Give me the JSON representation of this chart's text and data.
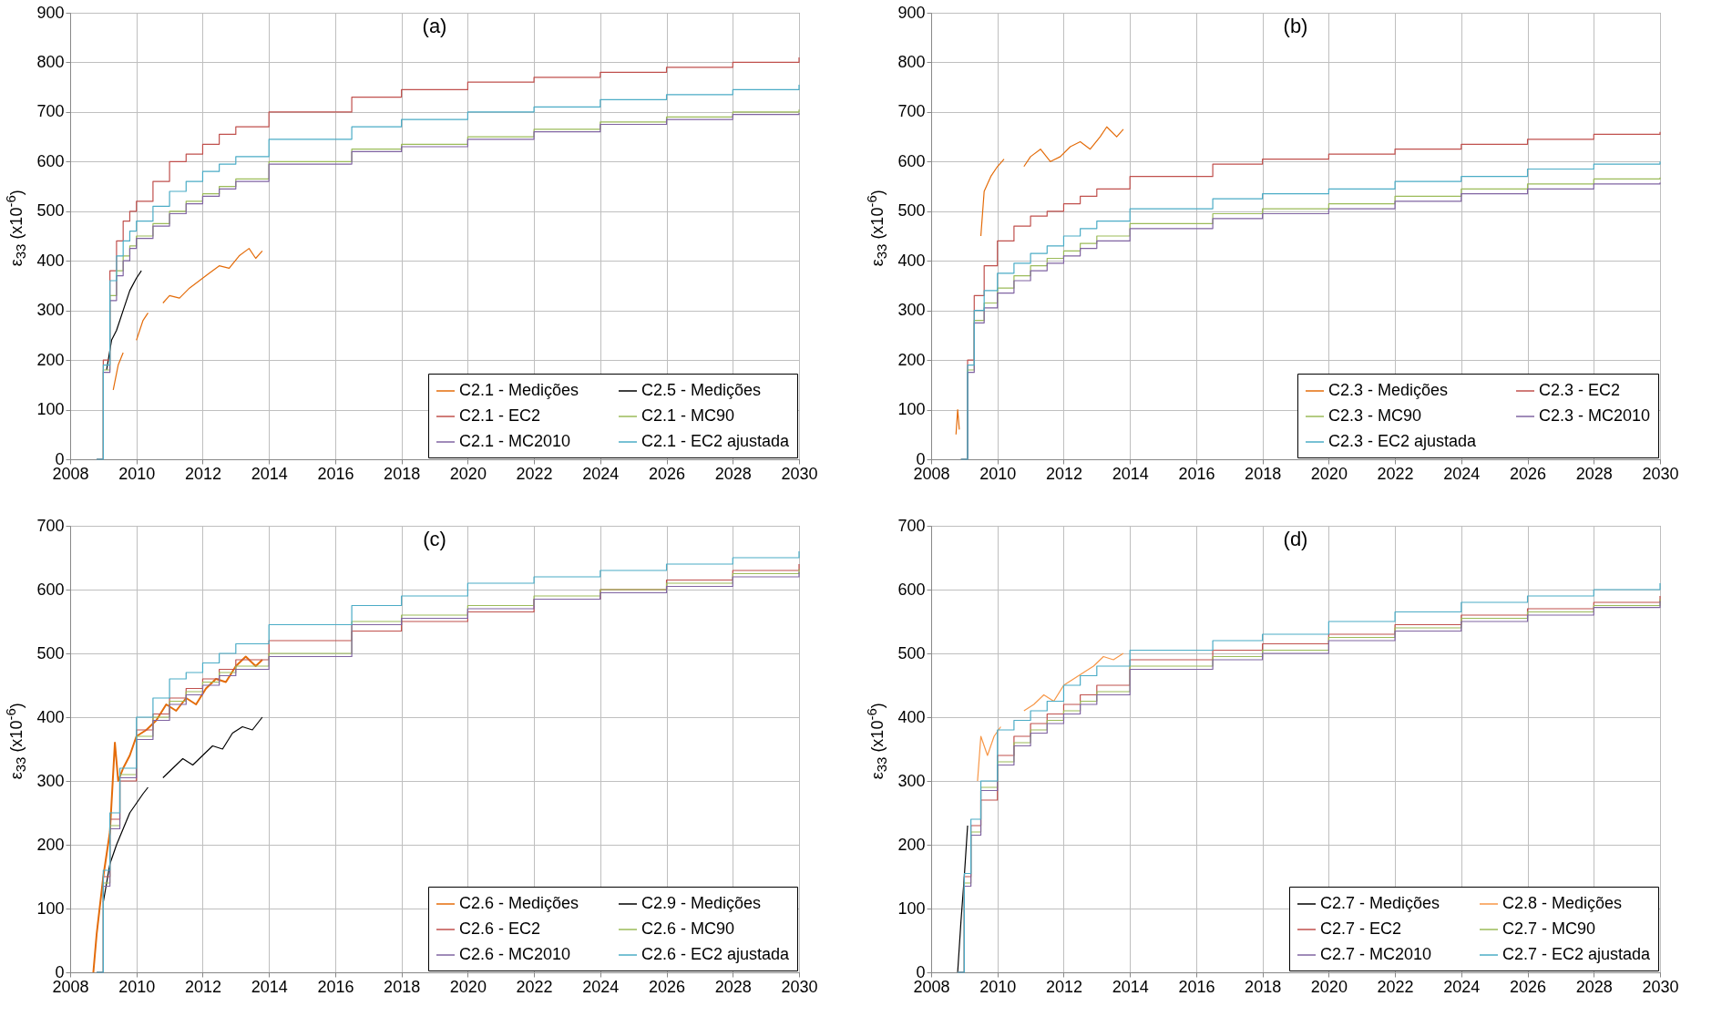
{
  "chart_data": [
    {
      "type": "line",
      "title": "(a)",
      "ylabel": "ε$_{33}$ (x10$^{-6}$)",
      "xlim": [
        2008,
        2030
      ],
      "xticks": [
        2008,
        2010,
        2012,
        2014,
        2016,
        2018,
        2020,
        2022,
        2024,
        2026,
        2028,
        2030
      ],
      "ylim": [
        0,
        900
      ],
      "yticks": [
        0,
        100,
        200,
        300,
        400,
        500,
        600,
        700,
        800,
        900
      ],
      "grid": true,
      "legend": "bottom right",
      "series": [
        {
          "name": "C2.1 - Medições",
          "color": "#e46c0a",
          "x": [
            2009.3,
            2009.45,
            2009.6,
            2009.8,
            2010.0,
            2010.2,
            2010.35,
            2010.5,
            2010.8,
            2011.0,
            2011.3,
            2011.6,
            2011.9,
            2012.2,
            2012.5,
            2012.8,
            2013.1,
            2013.4,
            2013.6,
            2013.8
          ],
          "values": [
            140,
            190,
            215,
            null,
            240,
            280,
            295,
            null,
            315,
            330,
            325,
            345,
            360,
            375,
            390,
            385,
            410,
            425,
            405,
            420
          ]
        },
        {
          "name": "C2.5 - Medições",
          "color": "#000000",
          "x": [
            2009.1,
            2009.25,
            2009.4,
            2009.6,
            2009.8,
            2010.0,
            2010.15
          ],
          "values": [
            180,
            240,
            260,
            300,
            340,
            365,
            380
          ]
        },
        {
          "name": "C2.1 - EC2",
          "type": "step",
          "color": "#c0504d",
          "x": [
            2008.8,
            2009.0,
            2009.2,
            2009.4,
            2009.6,
            2009.8,
            2010.0,
            2010.5,
            2011.0,
            2011.5,
            2012.0,
            2012.5,
            2013.0,
            2014.0,
            2016.5,
            2018.0,
            2020.0,
            2022.0,
            2024.0,
            2026.0,
            2028.0,
            2030.0
          ],
          "values": [
            0,
            200,
            380,
            440,
            480,
            500,
            520,
            560,
            600,
            615,
            635,
            655,
            670,
            700,
            730,
            745,
            760,
            770,
            780,
            790,
            800,
            810
          ]
        },
        {
          "name": "C2.1 - MC90",
          "type": "step",
          "color": "#9bbb59",
          "x": [
            2008.8,
            2009.0,
            2009.2,
            2009.4,
            2009.6,
            2009.8,
            2010.0,
            2010.5,
            2011.0,
            2011.5,
            2012.0,
            2012.5,
            2013.0,
            2014.0,
            2016.5,
            2018.0,
            2020.0,
            2022.0,
            2024.0,
            2026.0,
            2028.0,
            2030.0
          ],
          "values": [
            0,
            180,
            330,
            380,
            410,
            430,
            450,
            475,
            500,
            520,
            535,
            550,
            565,
            600,
            625,
            635,
            650,
            665,
            680,
            690,
            700,
            705
          ]
        },
        {
          "name": "C2.1 - MC2010",
          "type": "step",
          "color": "#8064a2",
          "x": [
            2008.8,
            2009.0,
            2009.2,
            2009.4,
            2009.6,
            2009.8,
            2010.0,
            2010.5,
            2011.0,
            2011.5,
            2012.0,
            2012.5,
            2013.0,
            2014.0,
            2016.5,
            2018.0,
            2020.0,
            2022.0,
            2024.0,
            2026.0,
            2028.0,
            2030.0
          ],
          "values": [
            0,
            175,
            320,
            370,
            400,
            425,
            445,
            470,
            495,
            515,
            530,
            545,
            560,
            595,
            620,
            630,
            645,
            660,
            675,
            685,
            695,
            698
          ]
        },
        {
          "name": "C2.1 - EC2 ajustada",
          "type": "step",
          "color": "#4bacc6",
          "x": [
            2008.8,
            2009.0,
            2009.2,
            2009.4,
            2009.6,
            2009.8,
            2010.0,
            2010.5,
            2011.0,
            2011.5,
            2012.0,
            2012.5,
            2013.0,
            2014.0,
            2016.5,
            2018.0,
            2020.0,
            2022.0,
            2024.0,
            2026.0,
            2028.0,
            2030.0
          ],
          "values": [
            0,
            190,
            360,
            410,
            440,
            460,
            480,
            510,
            540,
            560,
            580,
            595,
            610,
            645,
            670,
            685,
            700,
            710,
            725,
            735,
            745,
            755
          ]
        }
      ]
    },
    {
      "type": "line",
      "title": "(b)",
      "ylabel": "ε$_{33}$ (x10$^{-6}$)",
      "xlim": [
        2008,
        2030
      ],
      "xticks": [
        2008,
        2010,
        2012,
        2014,
        2016,
        2018,
        2020,
        2022,
        2024,
        2026,
        2028,
        2030
      ],
      "ylim": [
        0,
        900
      ],
      "yticks": [
        0,
        100,
        200,
        300,
        400,
        500,
        600,
        700,
        800,
        900
      ],
      "grid": true,
      "legend": "bottom right",
      "series": [
        {
          "name": "C2.3 - Medições",
          "color": "#e46c0a",
          "x": [
            2008.75,
            2008.8,
            2008.85,
            2009.4,
            2009.5,
            2009.6,
            2009.8,
            2010.0,
            2010.2,
            2010.5,
            2010.8,
            2011.0,
            2011.3,
            2011.6,
            2011.9,
            2012.2,
            2012.5,
            2012.8,
            2013.1,
            2013.3,
            2013.6,
            2013.8
          ],
          "values": [
            50,
            100,
            60,
            null,
            450,
            540,
            570,
            590,
            605,
            null,
            590,
            610,
            625,
            600,
            610,
            630,
            640,
            625,
            650,
            670,
            650,
            665
          ]
        },
        {
          "name": "C2.3 - EC2",
          "type": "step",
          "color": "#c0504d",
          "x": [
            2008.9,
            2009.1,
            2009.3,
            2009.6,
            2010.0,
            2010.5,
            2011.0,
            2011.5,
            2012.0,
            2012.5,
            2013.0,
            2014.0,
            2016.5,
            2018.0,
            2020.0,
            2022.0,
            2024.0,
            2026.0,
            2028.0,
            2030.0
          ],
          "values": [
            0,
            200,
            330,
            390,
            440,
            470,
            490,
            500,
            515,
            530,
            545,
            570,
            595,
            605,
            615,
            625,
            635,
            645,
            655,
            660
          ]
        },
        {
          "name": "C2.3 - MC90",
          "type": "step",
          "color": "#9bbb59",
          "x": [
            2008.9,
            2009.1,
            2009.3,
            2009.6,
            2010.0,
            2010.5,
            2011.0,
            2011.5,
            2012.0,
            2012.5,
            2013.0,
            2014.0,
            2016.5,
            2018.0,
            2020.0,
            2022.0,
            2024.0,
            2026.0,
            2028.0,
            2030.0
          ],
          "values": [
            0,
            180,
            280,
            315,
            345,
            370,
            390,
            405,
            420,
            435,
            450,
            475,
            495,
            505,
            515,
            530,
            545,
            555,
            565,
            568
          ]
        },
        {
          "name": "C2.3 - MC2010",
          "type": "step",
          "color": "#8064a2",
          "x": [
            2008.9,
            2009.1,
            2009.3,
            2009.6,
            2010.0,
            2010.5,
            2011.0,
            2011.5,
            2012.0,
            2012.5,
            2013.0,
            2014.0,
            2016.5,
            2018.0,
            2020.0,
            2022.0,
            2024.0,
            2026.0,
            2028.0,
            2030.0
          ],
          "values": [
            0,
            175,
            275,
            305,
            335,
            360,
            380,
            395,
            410,
            425,
            440,
            465,
            485,
            495,
            505,
            520,
            535,
            545,
            555,
            558
          ]
        },
        {
          "name": "C2.3 - EC2 ajustada",
          "type": "step",
          "color": "#4bacc6",
          "x": [
            2008.9,
            2009.1,
            2009.3,
            2009.6,
            2010.0,
            2010.5,
            2011.0,
            2011.5,
            2012.0,
            2012.5,
            2013.0,
            2014.0,
            2016.5,
            2018.0,
            2020.0,
            2022.0,
            2024.0,
            2026.0,
            2028.0,
            2030.0
          ],
          "values": [
            0,
            190,
            300,
            340,
            375,
            395,
            415,
            430,
            450,
            465,
            480,
            505,
            525,
            535,
            545,
            560,
            570,
            585,
            595,
            600
          ]
        }
      ]
    },
    {
      "type": "line",
      "title": "(c)",
      "ylabel": "ε$_{33}$ (x10$^{-6}$)",
      "xlim": [
        2008,
        2030
      ],
      "xticks": [
        2008,
        2010,
        2012,
        2014,
        2016,
        2018,
        2020,
        2022,
        2024,
        2026,
        2028,
        2030
      ],
      "ylim": [
        0,
        700
      ],
      "yticks": [
        0,
        100,
        200,
        300,
        400,
        500,
        600,
        700
      ],
      "grid": true,
      "legend": "bottom right",
      "series": [
        {
          "name": "C2.6 - Medições",
          "color": "#e46c0a",
          "x": [
            2008.7,
            2008.8,
            2009.0,
            2009.2,
            2009.35,
            2009.45,
            2009.6,
            2009.8,
            2010.0,
            2010.3,
            2010.6,
            2010.9,
            2011.2,
            2011.5,
            2011.8,
            2012.1,
            2012.4,
            2012.7,
            2013.0,
            2013.3,
            2013.6,
            2013.8
          ],
          "values": [
            0,
            60,
            150,
            220,
            360,
            300,
            320,
            340,
            370,
            380,
            395,
            420,
            410,
            430,
            420,
            445,
            460,
            455,
            480,
            495,
            480,
            490
          ]
        },
        {
          "name": "C2.9 - Medições",
          "color": "#000000",
          "x": [
            2009.0,
            2009.2,
            2009.4,
            2009.6,
            2009.8,
            2010.0,
            2010.2,
            2010.35,
            2010.5,
            2010.8,
            2011.1,
            2011.4,
            2011.7,
            2012.0,
            2012.3,
            2012.6,
            2012.9,
            2013.2,
            2013.5,
            2013.8
          ],
          "values": [
            110,
            170,
            200,
            225,
            250,
            265,
            280,
            290,
            null,
            305,
            320,
            335,
            325,
            340,
            355,
            350,
            375,
            385,
            380,
            400
          ]
        },
        {
          "name": "C2.6 - EC2",
          "type": "step",
          "color": "#c0504d",
          "x": [
            2008.8,
            2009.0,
            2009.2,
            2009.5,
            2010.0,
            2010.5,
            2011.0,
            2011.5,
            2012.0,
            2012.5,
            2013.0,
            2014.0,
            2016.5,
            2018.0,
            2020.0,
            2022.0,
            2024.0,
            2026.0,
            2028.0,
            2030.0
          ],
          "values": [
            0,
            150,
            240,
            300,
            380,
            405,
            430,
            445,
            460,
            475,
            490,
            520,
            535,
            550,
            565,
            585,
            600,
            615,
            630,
            640
          ]
        },
        {
          "name": "C2.6 - MC90",
          "type": "step",
          "color": "#9bbb59",
          "x": [
            2008.8,
            2009.0,
            2009.2,
            2009.5,
            2010.0,
            2010.5,
            2011.0,
            2011.5,
            2012.0,
            2012.5,
            2013.0,
            2014.0,
            2016.5,
            2018.0,
            2020.0,
            2022.0,
            2024.0,
            2026.0,
            2028.0,
            2030.0
          ],
          "values": [
            0,
            140,
            230,
            310,
            370,
            400,
            425,
            440,
            455,
            470,
            480,
            500,
            550,
            560,
            575,
            590,
            600,
            610,
            625,
            632
          ]
        },
        {
          "name": "C2.6 - MC2010",
          "type": "step",
          "color": "#8064a2",
          "x": [
            2008.8,
            2009.0,
            2009.2,
            2009.5,
            2010.0,
            2010.5,
            2011.0,
            2011.5,
            2012.0,
            2012.5,
            2013.0,
            2014.0,
            2016.5,
            2018.0,
            2020.0,
            2022.0,
            2024.0,
            2026.0,
            2028.0,
            2030.0
          ],
          "values": [
            0,
            135,
            225,
            305,
            365,
            395,
            420,
            435,
            450,
            465,
            475,
            495,
            545,
            555,
            570,
            585,
            595,
            605,
            620,
            628
          ]
        },
        {
          "name": "C2.6 - EC2 ajustada",
          "type": "step",
          "color": "#4bacc6",
          "x": [
            2008.8,
            2009.0,
            2009.2,
            2009.5,
            2010.0,
            2010.5,
            2011.0,
            2011.5,
            2012.0,
            2012.5,
            2013.0,
            2014.0,
            2016.5,
            2018.0,
            2020.0,
            2022.0,
            2024.0,
            2026.0,
            2028.0,
            2030.0
          ],
          "values": [
            0,
            160,
            250,
            320,
            400,
            430,
            460,
            470,
            485,
            500,
            515,
            545,
            575,
            590,
            610,
            620,
            630,
            640,
            650,
            660
          ]
        }
      ]
    },
    {
      "type": "line",
      "title": "(d)",
      "ylabel": "ε$_{33}$ (x10$^{-6}$)",
      "xlim": [
        2008,
        2030
      ],
      "xticks": [
        2008,
        2010,
        2012,
        2014,
        2016,
        2018,
        2020,
        2022,
        2024,
        2026,
        2028,
        2030
      ],
      "ylim": [
        0,
        700
      ],
      "yticks": [
        0,
        100,
        200,
        300,
        400,
        500,
        600,
        700
      ],
      "grid": true,
      "legend": "bottom right",
      "series": [
        {
          "name": "C2.7 - Medições",
          "color": "#000000",
          "x": [
            2008.8,
            2008.9,
            2009.0,
            2009.1
          ],
          "values": [
            0,
            80,
            150,
            230
          ]
        },
        {
          "name": "C2.8 - Medições",
          "color": "#f79646",
          "x": [
            2009.4,
            2009.5,
            2009.7,
            2009.9,
            2010.1,
            2010.4,
            2010.8,
            2011.1,
            2011.4,
            2011.7,
            2012.0,
            2012.3,
            2012.6,
            2012.9,
            2013.2,
            2013.5,
            2013.8
          ],
          "values": [
            300,
            370,
            340,
            370,
            385,
            null,
            410,
            420,
            435,
            425,
            450,
            460,
            470,
            480,
            495,
            490,
            500
          ]
        },
        {
          "name": "C2.7 - EC2",
          "type": "step",
          "color": "#c0504d",
          "x": [
            2008.8,
            2009.0,
            2009.2,
            2009.5,
            2010.0,
            2010.5,
            2011.0,
            2011.5,
            2012.0,
            2012.5,
            2013.0,
            2014.0,
            2016.5,
            2018.0,
            2020.0,
            2022.0,
            2024.0,
            2026.0,
            2028.0,
            2030.0
          ],
          "values": [
            0,
            150,
            230,
            270,
            340,
            370,
            390,
            405,
            420,
            435,
            450,
            490,
            505,
            515,
            530,
            545,
            560,
            570,
            580,
            590
          ]
        },
        {
          "name": "C2.7 - MC90",
          "type": "step",
          "color": "#9bbb59",
          "x": [
            2008.8,
            2009.0,
            2009.2,
            2009.5,
            2010.0,
            2010.5,
            2011.0,
            2011.5,
            2012.0,
            2012.5,
            2013.0,
            2014.0,
            2016.5,
            2018.0,
            2020.0,
            2022.0,
            2024.0,
            2026.0,
            2028.0,
            2030.0
          ],
          "values": [
            0,
            140,
            220,
            290,
            330,
            360,
            380,
            395,
            410,
            425,
            440,
            480,
            495,
            505,
            525,
            540,
            555,
            565,
            575,
            585
          ]
        },
        {
          "name": "C2.7 - MC2010",
          "type": "step",
          "color": "#8064a2",
          "x": [
            2008.8,
            2009.0,
            2009.2,
            2009.5,
            2010.0,
            2010.5,
            2011.0,
            2011.5,
            2012.0,
            2012.5,
            2013.0,
            2014.0,
            2016.5,
            2018.0,
            2020.0,
            2022.0,
            2024.0,
            2026.0,
            2028.0,
            2030.0
          ],
          "values": [
            0,
            135,
            215,
            285,
            325,
            355,
            375,
            390,
            405,
            420,
            435,
            475,
            490,
            500,
            520,
            535,
            550,
            560,
            572,
            582
          ]
        },
        {
          "name": "C2.7 - EC2 ajustada",
          "type": "step",
          "color": "#4bacc6",
          "x": [
            2008.8,
            2009.0,
            2009.2,
            2009.5,
            2010.0,
            2010.5,
            2011.0,
            2011.5,
            2012.0,
            2012.5,
            2013.0,
            2014.0,
            2016.5,
            2018.0,
            2020.0,
            2022.0,
            2024.0,
            2026.0,
            2028.0,
            2030.0
          ],
          "values": [
            0,
            155,
            240,
            300,
            380,
            395,
            410,
            425,
            450,
            465,
            480,
            505,
            520,
            530,
            550,
            565,
            580,
            590,
            600,
            610
          ]
        }
      ]
    }
  ]
}
